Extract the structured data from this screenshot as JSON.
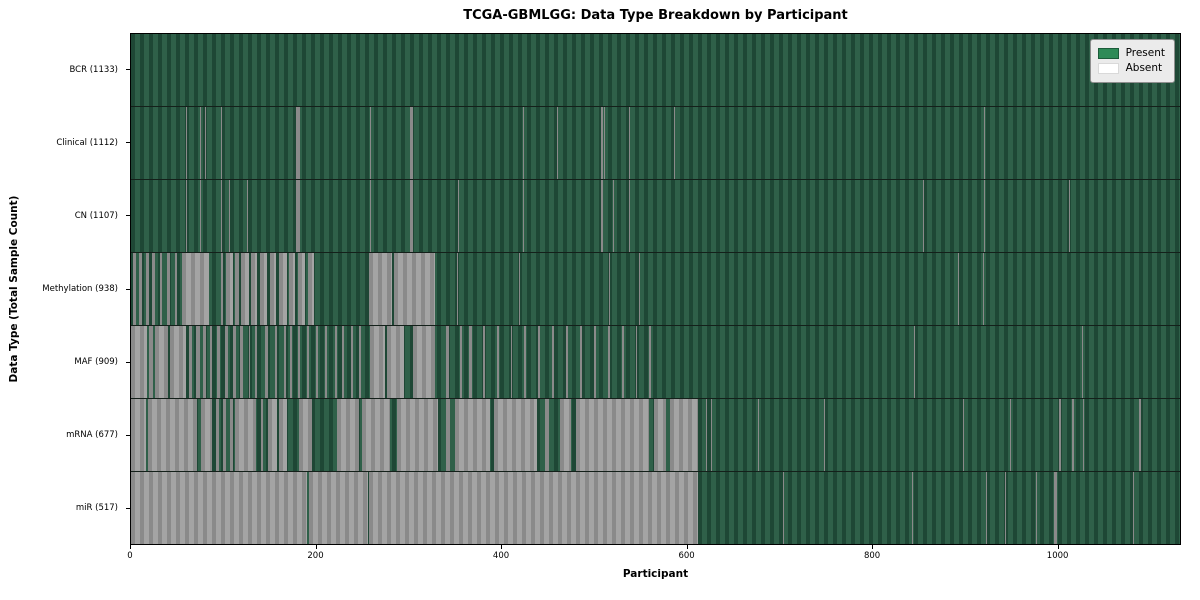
{
  "title": "TCGA-GBMLGG: Data Type Breakdown by Participant",
  "chart_data": {
    "type": "heatmap",
    "title": "TCGA-GBMLGG: Data Type Breakdown by Participant",
    "xlabel": "Participant",
    "ylabel": "Data Type (Total Sample Count)",
    "x_range": [
      0,
      1133
    ],
    "x_ticks": [
      0,
      200,
      400,
      600,
      800,
      1000
    ],
    "grid": false,
    "legend": {
      "position": "upper right",
      "entries": [
        {
          "label": "Present",
          "color": "#2e8b57"
        },
        {
          "label": "Absent",
          "color": "#ffffff"
        }
      ]
    },
    "bar_colors": {
      "present": "#2e8b57",
      "absent": "#ffffff",
      "edge": "#000000"
    },
    "rows": [
      {
        "label": "BCR (1133)",
        "name": "BCR",
        "total": 1133,
        "absent_runs": []
      },
      {
        "label": "Clinical (1112)",
        "name": "Clinical",
        "total": 1112,
        "absent_runs": [
          [
            59,
            61
          ],
          [
            75,
            76
          ],
          [
            80,
            81
          ],
          [
            97,
            98
          ],
          [
            178,
            183
          ],
          [
            258,
            259
          ],
          [
            301,
            305
          ],
          [
            423,
            424
          ],
          [
            460,
            461
          ],
          [
            508,
            510
          ],
          [
            511,
            512
          ],
          [
            538,
            539
          ],
          [
            586,
            588
          ],
          [
            921,
            922
          ]
        ]
      },
      {
        "label": "CN (1107)",
        "name": "CN",
        "total": 1107,
        "absent_runs": [
          [
            59,
            61
          ],
          [
            75,
            76
          ],
          [
            97,
            98
          ],
          [
            106,
            107
          ],
          [
            125,
            126
          ],
          [
            178,
            183
          ],
          [
            258,
            259
          ],
          [
            301,
            305
          ],
          [
            353,
            354
          ],
          [
            423,
            424
          ],
          [
            508,
            510
          ],
          [
            521,
            522
          ],
          [
            538,
            539
          ],
          [
            855,
            856
          ],
          [
            921,
            922
          ],
          [
            1013,
            1014
          ]
        ]
      },
      {
        "label": "Methylation (938)",
        "name": "Methylation",
        "total": 938,
        "absent_runs": [
          [
            2,
            5
          ],
          [
            9,
            12
          ],
          [
            16,
            19
          ],
          [
            23,
            26
          ],
          [
            31,
            34
          ],
          [
            39,
            42
          ],
          [
            47,
            50
          ],
          [
            55,
            84
          ],
          [
            97,
            99
          ],
          [
            103,
            110
          ],
          [
            112,
            117
          ],
          [
            119,
            127
          ],
          [
            130,
            136
          ],
          [
            139,
            147
          ],
          [
            150,
            157
          ],
          [
            160,
            168
          ],
          [
            171,
            177
          ],
          [
            180,
            188
          ],
          [
            191,
            198
          ],
          [
            257,
            282
          ],
          [
            284,
            328
          ],
          [
            352,
            353
          ],
          [
            419,
            420
          ],
          [
            516,
            517
          ],
          [
            549,
            550
          ],
          [
            893,
            894
          ],
          [
            920,
            921
          ]
        ]
      },
      {
        "label": "MAF (909)",
        "name": "MAF",
        "total": 909,
        "absent_runs": [
          [
            0,
            17
          ],
          [
            19,
            24
          ],
          [
            26,
            40
          ],
          [
            42,
            59
          ],
          [
            63,
            66
          ],
          [
            70,
            74
          ],
          [
            78,
            81
          ],
          [
            85,
            88
          ],
          [
            93,
            96
          ],
          [
            102,
            105
          ],
          [
            110,
            113
          ],
          [
            118,
            121
          ],
          [
            127,
            129
          ],
          [
            134,
            136
          ],
          [
            145,
            148
          ],
          [
            155,
            158
          ],
          [
            165,
            167
          ],
          [
            172,
            174
          ],
          [
            180,
            183
          ],
          [
            190,
            192
          ],
          [
            200,
            202
          ],
          [
            210,
            212
          ],
          [
            220,
            222
          ],
          [
            228,
            230
          ],
          [
            238,
            240
          ],
          [
            246,
            248
          ],
          [
            258,
            274
          ],
          [
            276,
            295
          ],
          [
            305,
            328
          ],
          [
            340,
            343
          ],
          [
            355,
            358
          ],
          [
            365,
            368
          ],
          [
            380,
            382
          ],
          [
            395,
            397
          ],
          [
            410,
            412
          ],
          [
            425,
            427
          ],
          [
            440,
            442
          ],
          [
            455,
            457
          ],
          [
            470,
            472
          ],
          [
            485,
            487
          ],
          [
            500,
            502
          ],
          [
            515,
            517
          ],
          [
            530,
            532
          ],
          [
            545,
            547
          ],
          [
            560,
            562
          ],
          [
            748,
            749
          ],
          [
            846,
            847
          ],
          [
            1027,
            1028
          ]
        ]
      },
      {
        "label": "mRNA (677)",
        "name": "mRNA",
        "total": 677,
        "absent_runs": [
          [
            0,
            16
          ],
          [
            18,
            71
          ],
          [
            76,
            88
          ],
          [
            92,
            95
          ],
          [
            99,
            103
          ],
          [
            107,
            110
          ],
          [
            112,
            135
          ],
          [
            140,
            143
          ],
          [
            148,
            158
          ],
          [
            160,
            168
          ],
          [
            181,
            195
          ],
          [
            222,
            246
          ],
          [
            249,
            280
          ],
          [
            287,
            332
          ],
          [
            340,
            345
          ],
          [
            350,
            388
          ],
          [
            392,
            438
          ],
          [
            447,
            452
          ],
          [
            463,
            475
          ],
          [
            481,
            560
          ],
          [
            565,
            578
          ],
          [
            582,
            612
          ],
          [
            621,
            622
          ],
          [
            626,
            627
          ],
          [
            677,
            678
          ],
          [
            749,
            750
          ],
          [
            899,
            900
          ],
          [
            949,
            950
          ],
          [
            1002,
            1005
          ],
          [
            1016,
            1018
          ],
          [
            1028,
            1029
          ],
          [
            1089,
            1091
          ]
        ]
      },
      {
        "label": "miR (517)",
        "name": "miR",
        "total": 517,
        "absent_runs": [
          [
            0,
            190
          ],
          [
            192,
            256
          ],
          [
            257,
            612
          ],
          [
            654,
            655
          ],
          [
            704,
            705
          ],
          [
            844,
            845
          ],
          [
            923,
            924
          ],
          [
            944,
            945
          ],
          [
            978,
            979
          ],
          [
            997,
            1000
          ],
          [
            1082,
            1083
          ]
        ]
      }
    ]
  }
}
